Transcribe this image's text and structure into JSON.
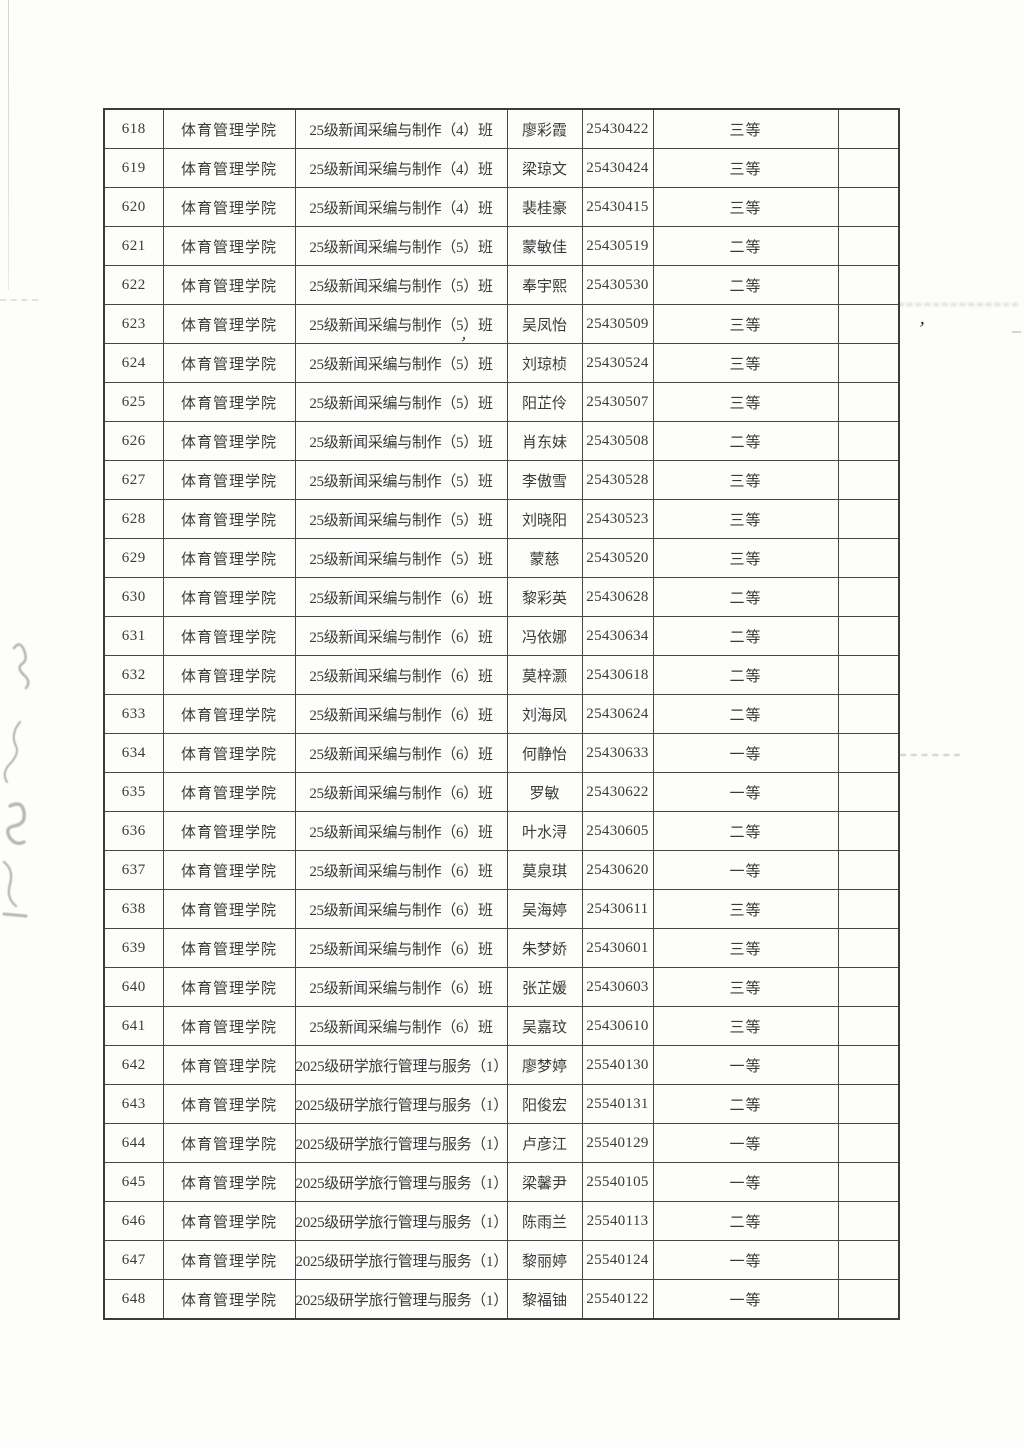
{
  "page": {
    "background_color": "#fdfdfb",
    "ink_color": "#3a3a3a",
    "grid_line_color": "#464646"
  },
  "table": {
    "rows": [
      {
        "no": "618",
        "college": "体育管理学院",
        "class_name": "25级新闻采编与制作（4）班",
        "student_name": "廖彩霞",
        "student_id": "25430422",
        "award": "三等",
        "note": ""
      },
      {
        "no": "619",
        "college": "体育管理学院",
        "class_name": "25级新闻采编与制作（4）班",
        "student_name": "梁琼文",
        "student_id": "25430424",
        "award": "三等",
        "note": ""
      },
      {
        "no": "620",
        "college": "体育管理学院",
        "class_name": "25级新闻采编与制作（4）班",
        "student_name": "裴桂豪",
        "student_id": "25430415",
        "award": "三等",
        "note": ""
      },
      {
        "no": "621",
        "college": "体育管理学院",
        "class_name": "25级新闻采编与制作（5）班",
        "student_name": "蒙敏佳",
        "student_id": "25430519",
        "award": "二等",
        "note": ""
      },
      {
        "no": "622",
        "college": "体育管理学院",
        "class_name": "25级新闻采编与制作（5）班",
        "student_name": "奉宇熙",
        "student_id": "25430530",
        "award": "二等",
        "note": ""
      },
      {
        "no": "623",
        "college": "体育管理学院",
        "class_name": "25级新闻采编与制作（5）班",
        "student_name": "吴凤怡",
        "student_id": "25430509",
        "award": "三等",
        "note": ""
      },
      {
        "no": "624",
        "college": "体育管理学院",
        "class_name": "25级新闻采编与制作（5）班",
        "student_name": "刘琼桢",
        "student_id": "25430524",
        "award": "三等",
        "note": ""
      },
      {
        "no": "625",
        "college": "体育管理学院",
        "class_name": "25级新闻采编与制作（5）班",
        "student_name": "阳芷伶",
        "student_id": "25430507",
        "award": "三等",
        "note": ""
      },
      {
        "no": "626",
        "college": "体育管理学院",
        "class_name": "25级新闻采编与制作（5）班",
        "student_name": "肖东妹",
        "student_id": "25430508",
        "award": "二等",
        "note": ""
      },
      {
        "no": "627",
        "college": "体育管理学院",
        "class_name": "25级新闻采编与制作（5）班",
        "student_name": "李傲雪",
        "student_id": "25430528",
        "award": "三等",
        "note": ""
      },
      {
        "no": "628",
        "college": "体育管理学院",
        "class_name": "25级新闻采编与制作（5）班",
        "student_name": "刘晓阳",
        "student_id": "25430523",
        "award": "三等",
        "note": ""
      },
      {
        "no": "629",
        "college": "体育管理学院",
        "class_name": "25级新闻采编与制作（5）班",
        "student_name": "蒙慈",
        "student_id": "25430520",
        "award": "三等",
        "note": ""
      },
      {
        "no": "630",
        "college": "体育管理学院",
        "class_name": "25级新闻采编与制作（6）班",
        "student_name": "黎彩英",
        "student_id": "25430628",
        "award": "二等",
        "note": ""
      },
      {
        "no": "631",
        "college": "体育管理学院",
        "class_name": "25级新闻采编与制作（6）班",
        "student_name": "冯依娜",
        "student_id": "25430634",
        "award": "二等",
        "note": ""
      },
      {
        "no": "632",
        "college": "体育管理学院",
        "class_name": "25级新闻采编与制作（6）班",
        "student_name": "莫梓灏",
        "student_id": "25430618",
        "award": "二等",
        "note": ""
      },
      {
        "no": "633",
        "college": "体育管理学院",
        "class_name": "25级新闻采编与制作（6）班",
        "student_name": "刘海凤",
        "student_id": "25430624",
        "award": "二等",
        "note": ""
      },
      {
        "no": "634",
        "college": "体育管理学院",
        "class_name": "25级新闻采编与制作（6）班",
        "student_name": "何静怡",
        "student_id": "25430633",
        "award": "一等",
        "note": ""
      },
      {
        "no": "635",
        "college": "体育管理学院",
        "class_name": "25级新闻采编与制作（6）班",
        "student_name": "罗敏",
        "student_id": "25430622",
        "award": "一等",
        "note": ""
      },
      {
        "no": "636",
        "college": "体育管理学院",
        "class_name": "25级新闻采编与制作（6）班",
        "student_name": "叶水浔",
        "student_id": "25430605",
        "award": "二等",
        "note": ""
      },
      {
        "no": "637",
        "college": "体育管理学院",
        "class_name": "25级新闻采编与制作（6）班",
        "student_name": "莫泉琪",
        "student_id": "25430620",
        "award": "一等",
        "note": ""
      },
      {
        "no": "638",
        "college": "体育管理学院",
        "class_name": "25级新闻采编与制作（6）班",
        "student_name": "吴海婷",
        "student_id": "25430611",
        "award": "三等",
        "note": ""
      },
      {
        "no": "639",
        "college": "体育管理学院",
        "class_name": "25级新闻采编与制作（6）班",
        "student_name": "朱梦娇",
        "student_id": "25430601",
        "award": "三等",
        "note": ""
      },
      {
        "no": "640",
        "college": "体育管理学院",
        "class_name": "25级新闻采编与制作（6）班",
        "student_name": "张芷媛",
        "student_id": "25430603",
        "award": "三等",
        "note": ""
      },
      {
        "no": "641",
        "college": "体育管理学院",
        "class_name": "25级新闻采编与制作（6）班",
        "student_name": "吴嘉玟",
        "student_id": "25430610",
        "award": "三等",
        "note": ""
      },
      {
        "no": "642",
        "college": "体育管理学院",
        "class_name": "2025级研学旅行管理与服务（1）班",
        "student_name": "廖梦婷",
        "student_id": "25540130",
        "award": "一等",
        "note": ""
      },
      {
        "no": "643",
        "college": "体育管理学院",
        "class_name": "2025级研学旅行管理与服务（1）班",
        "student_name": "阳俊宏",
        "student_id": "25540131",
        "award": "二等",
        "note": ""
      },
      {
        "no": "644",
        "college": "体育管理学院",
        "class_name": "2025级研学旅行管理与服务（1）班",
        "student_name": "卢彦江",
        "student_id": "25540129",
        "award": "一等",
        "note": ""
      },
      {
        "no": "645",
        "college": "体育管理学院",
        "class_name": "2025级研学旅行管理与服务（1）班",
        "student_name": "梁馨尹",
        "student_id": "25540105",
        "award": "一等",
        "note": ""
      },
      {
        "no": "646",
        "college": "体育管理学院",
        "class_name": "2025级研学旅行管理与服务（1）班",
        "student_name": "陈雨兰",
        "student_id": "25540113",
        "award": "二等",
        "note": ""
      },
      {
        "no": "647",
        "college": "体育管理学院",
        "class_name": "2025级研学旅行管理与服务（1）班",
        "student_name": "黎丽婷",
        "student_id": "25540124",
        "award": "一等",
        "note": ""
      },
      {
        "no": "648",
        "college": "体育管理学院",
        "class_name": "2025级研学旅行管理与服务（1）班",
        "student_name": "黎福铀",
        "student_id": "25540122",
        "award": "一等",
        "note": ""
      }
    ]
  },
  "annotations": {
    "stray_comma": "’",
    "class_tick": "，"
  }
}
